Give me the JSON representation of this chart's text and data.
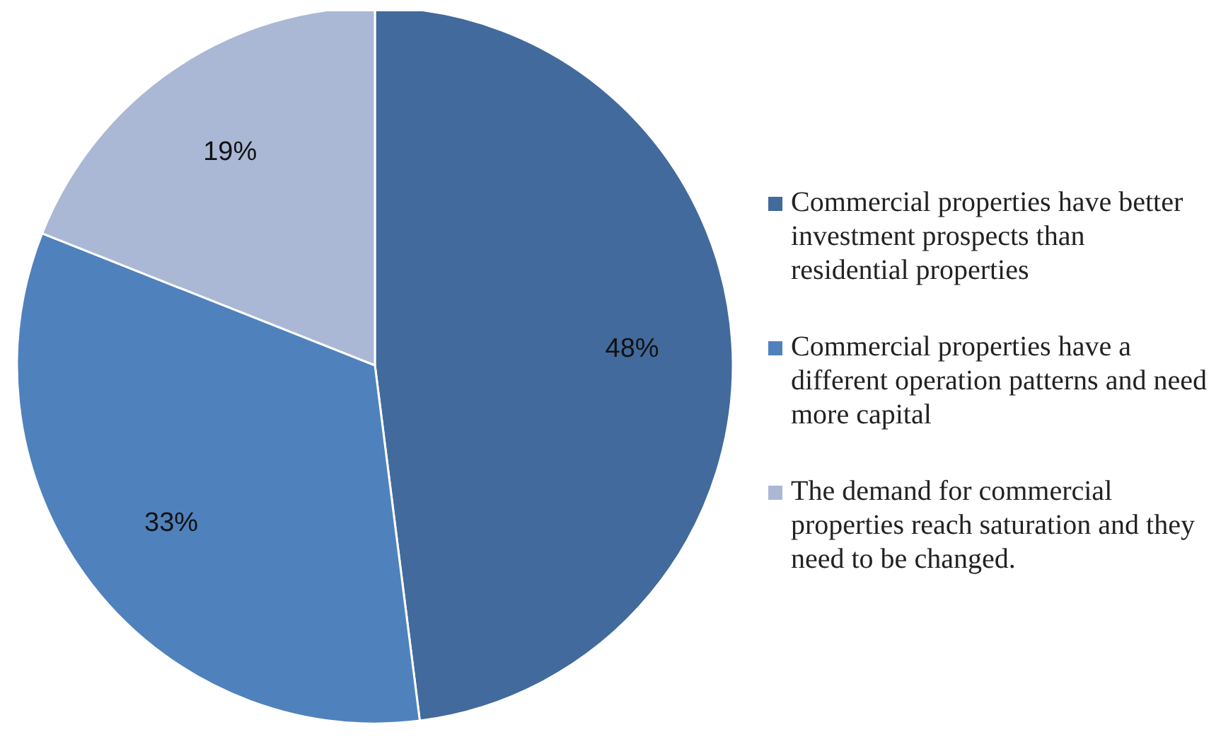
{
  "chart_data": {
    "type": "pie",
    "categories": [
      "Commercial properties have better investment prospects than residential properties",
      "Commercial properties have a different operation patterns and need more capital",
      "The demand for commercial properties reach saturation and they need to be changed."
    ],
    "values": [
      48,
      33,
      19
    ],
    "colors": [
      "#426a9c",
      "#4f81bd",
      "#aab8d5"
    ],
    "value_labels": [
      "48%",
      "33%",
      "19%"
    ],
    "legend": "right"
  }
}
